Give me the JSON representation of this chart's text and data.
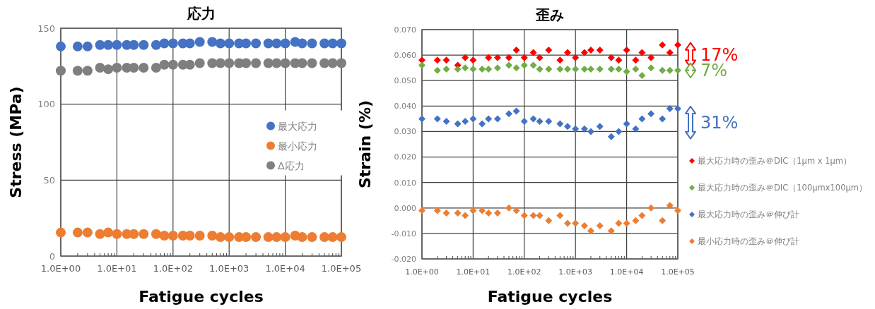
{
  "chart_data": [
    {
      "type": "scatter",
      "title": "応力",
      "xlabel": "Fatigue cycles",
      "ylabel": "Stress (MPa)",
      "log": "x",
      "grid": true,
      "marker": "circle",
      "legend": "right",
      "x": [
        1,
        2,
        3,
        5,
        7,
        10,
        15,
        20,
        30,
        50,
        70,
        100,
        150,
        200,
        300,
        500,
        700,
        1000,
        1500,
        2000,
        3000,
        5000,
        7000,
        10000,
        15000,
        20000,
        30000,
        50000,
        70000,
        100000
      ],
      "xlim": [
        1,
        100000
      ],
      "xticks": [
        {
          "value": 1,
          "label": "1.0E+00"
        },
        {
          "value": 10,
          "label": "1.0E+01"
        },
        {
          "value": 100,
          "label": "1.0E+02"
        },
        {
          "value": 1000,
          "label": "1.0E+03"
        },
        {
          "value": 10000,
          "label": "1.0E+04"
        },
        {
          "value": 100000,
          "label": "1.0E+05"
        }
      ],
      "ylim": [
        0,
        150
      ],
      "yticks": [
        0,
        50,
        100,
        150
      ],
      "series": [
        {
          "name": "最大応力",
          "color": "#4472c4",
          "values": [
            138,
            138,
            138,
            139,
            139,
            139,
            139,
            139,
            139,
            139,
            140,
            140,
            140,
            140,
            141,
            141,
            140,
            140,
            140,
            140,
            140,
            140,
            140,
            140,
            141,
            140,
            140,
            140,
            140,
            140
          ]
        },
        {
          "name": "最小応力",
          "color": "#ed7d31",
          "values": [
            15.5,
            15.5,
            15.5,
            14.5,
            15.5,
            14.5,
            14.5,
            14.5,
            14.5,
            14.5,
            13.5,
            13.5,
            13.5,
            13.5,
            13.5,
            13.5,
            12.5,
            12.5,
            12.5,
            12.5,
            12.5,
            12.5,
            12.5,
            12.5,
            13.5,
            12.5,
            12.5,
            12.5,
            12.5,
            12.5
          ]
        },
        {
          "name": "Δ応力",
          "color": "#7f7f7f",
          "values": [
            122,
            122,
            122,
            124,
            123,
            124,
            124,
            124,
            124,
            124,
            126,
            126,
            126,
            126,
            127,
            127,
            127,
            127,
            127,
            127,
            127,
            127,
            127,
            127,
            127,
            127,
            127,
            127,
            127,
            127
          ]
        }
      ]
    },
    {
      "type": "scatter",
      "title": "歪み",
      "xlabel": "Fatigue cycles",
      "ylabel": "Strain (%)",
      "log": "x",
      "grid": true,
      "marker": "diamond",
      "legend": "right",
      "x": [
        1,
        2,
        3,
        5,
        7,
        10,
        15,
        20,
        30,
        50,
        70,
        100,
        150,
        200,
        300,
        500,
        700,
        1000,
        1500,
        2000,
        3000,
        5000,
        7000,
        10000,
        15000,
        20000,
        30000,
        50000,
        70000,
        100000
      ],
      "xlim": [
        1,
        100000
      ],
      "xticks": [
        {
          "value": 1,
          "label": "1.0E+00"
        },
        {
          "value": 10,
          "label": "1.0E+01"
        },
        {
          "value": 100,
          "label": "1.0E+02"
        },
        {
          "value": 1000,
          "label": "1.0E+03"
        },
        {
          "value": 10000,
          "label": "1.0E+04"
        },
        {
          "value": 100000,
          "label": "1.0E+05"
        }
      ],
      "ylim": [
        -0.02,
        0.07
      ],
      "yticks": [
        {
          "value": -0.02,
          "label": "-0.020"
        },
        {
          "value": -0.01,
          "label": "-0.010"
        },
        {
          "value": 0,
          "label": "0.000"
        },
        {
          "value": 0.01,
          "label": "0.010"
        },
        {
          "value": 0.02,
          "label": "0.020"
        },
        {
          "value": 0.03,
          "label": "0.030"
        },
        {
          "value": 0.04,
          "label": "0.040"
        },
        {
          "value": 0.05,
          "label": "0.050"
        },
        {
          "value": 0.06,
          "label": "0.060"
        },
        {
          "value": 0.07,
          "label": "0.070"
        }
      ],
      "annotations": [
        "17%",
        "7%",
        "31%"
      ],
      "series": [
        {
          "name": "最大応力時の歪み＠DIC（1μm x 1μm）",
          "color": "#ff0000",
          "values": [
            0.058,
            0.058,
            0.058,
            0.056,
            0.059,
            0.058,
            null,
            0.059,
            0.059,
            0.059,
            0.062,
            0.059,
            0.061,
            0.059,
            0.062,
            0.058,
            0.061,
            0.059,
            0.061,
            0.062,
            0.062,
            0.059,
            0.058,
            0.062,
            0.058,
            0.061,
            0.059,
            0.064,
            0.061,
            0.064
          ]
        },
        {
          "name": "最大応力時の歪み＠DIC（100μmx100μm）",
          "color": "#70ad47",
          "values": [
            0.056,
            0.054,
            0.0545,
            0.0545,
            0.055,
            0.0545,
            0.0545,
            0.0545,
            0.055,
            0.056,
            0.055,
            0.056,
            0.056,
            0.0545,
            0.0545,
            0.0545,
            0.0545,
            0.0545,
            0.0545,
            0.0545,
            0.0545,
            0.0545,
            0.0545,
            0.0535,
            0.0545,
            0.052,
            0.055,
            0.054,
            0.054,
            0.054
          ]
        },
        {
          "name": "最大応力時の歪み＠伸び計",
          "color": "#4472c4",
          "values": [
            0.035,
            0.035,
            0.034,
            0.033,
            0.034,
            0.035,
            0.033,
            0.035,
            0.035,
            0.037,
            0.038,
            0.034,
            0.035,
            0.034,
            0.034,
            0.033,
            0.032,
            0.031,
            0.031,
            0.03,
            0.032,
            0.028,
            0.03,
            0.033,
            0.031,
            0.035,
            0.037,
            0.035,
            0.039,
            0.039
          ]
        },
        {
          "name": "最小応力時の歪み＠伸び計",
          "color": "#ed7d31",
          "values": [
            -0.001,
            -0.001,
            -0.002,
            -0.002,
            -0.003,
            -0.001,
            -0.001,
            -0.002,
            -0.002,
            0.0,
            -0.001,
            -0.003,
            -0.003,
            -0.003,
            -0.005,
            -0.003,
            -0.006,
            -0.006,
            -0.007,
            -0.009,
            -0.007,
            -0.009,
            -0.006,
            -0.006,
            -0.005,
            -0.003,
            0.0,
            -0.005,
            0.001,
            -0.001
          ]
        }
      ]
    }
  ]
}
